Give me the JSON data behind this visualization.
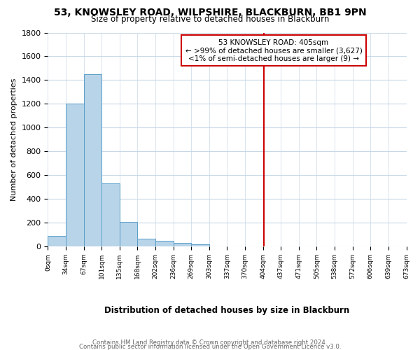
{
  "title": "53, KNOWSLEY ROAD, WILPSHIRE, BLACKBURN, BB1 9PN",
  "subtitle": "Size of property relative to detached houses in Blackburn",
  "xlabel": "Distribution of detached houses by size in Blackburn",
  "ylabel": "Number of detached properties",
  "bar_values": [
    90,
    1200,
    1450,
    530,
    205,
    65,
    48,
    32,
    20,
    0,
    0,
    0,
    0,
    0,
    0,
    0,
    0,
    0,
    0,
    0
  ],
  "bin_labels": [
    "0sqm",
    "34sqm",
    "67sqm",
    "101sqm",
    "135sqm",
    "168sqm",
    "202sqm",
    "236sqm",
    "269sqm",
    "303sqm",
    "337sqm",
    "370sqm",
    "404sqm",
    "437sqm",
    "471sqm",
    "505sqm",
    "538sqm",
    "572sqm",
    "606sqm",
    "639sqm",
    "673sqm"
  ],
  "bar_color": "#b8d4e8",
  "bar_edge_color": "#5a9ec9",
  "vline_color": "#cc0000",
  "ylim": [
    0,
    1800
  ],
  "yticks": [
    0,
    200,
    400,
    600,
    800,
    1000,
    1200,
    1400,
    1600,
    1800
  ],
  "annotation_title": "53 KNOWSLEY ROAD: 405sqm",
  "annotation_line1": "← >99% of detached houses are smaller (3,627)",
  "annotation_line2": "<1% of semi-detached houses are larger (9) →",
  "footer_line1": "Contains HM Land Registry data © Crown copyright and database right 2024.",
  "footer_line2": "Contains public sector information licensed under the Open Government Licence v3.0.",
  "background_color": "#ffffff",
  "grid_color": "#c8d8e8"
}
